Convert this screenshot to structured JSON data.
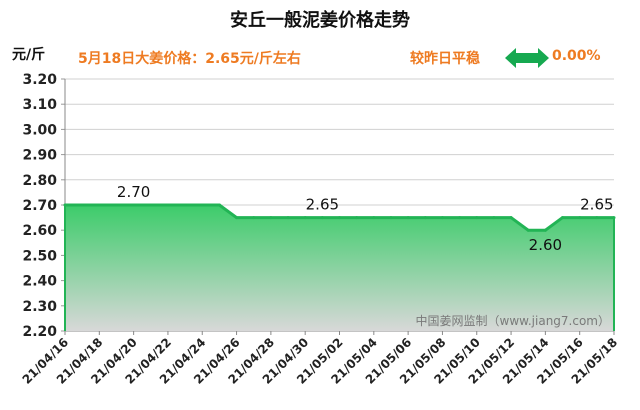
{
  "title": "安丘一般泥姜价格走势",
  "unit": "元/斤",
  "price_note": "5月18日大姜价格：2.65元/斤左右",
  "compare_label": "较昨日平稳",
  "compare_value": "0.00%",
  "watermark": "中国姜网监制（www.jiang7.com）",
  "colors": {
    "title": "#111111",
    "accent": "#ee7b22",
    "line": "#22b455",
    "arrow": "#16a950",
    "fill_top": "#3ccc6a",
    "fill_bottom": "#d8d8d8"
  },
  "chart_data": {
    "type": "area",
    "x": [
      "21/04/16",
      "21/04/17",
      "21/04/18",
      "21/04/19",
      "21/04/20",
      "21/04/21",
      "21/04/22",
      "21/04/23",
      "21/04/24",
      "21/04/25",
      "21/04/26",
      "21/04/27",
      "21/04/28",
      "21/04/29",
      "21/04/30",
      "21/05/01",
      "21/05/02",
      "21/05/03",
      "21/05/04",
      "21/05/05",
      "21/05/06",
      "21/05/07",
      "21/05/08",
      "21/05/09",
      "21/05/10",
      "21/05/11",
      "21/05/12",
      "21/05/13",
      "21/05/14",
      "21/05/15",
      "21/05/16",
      "21/05/17",
      "21/05/18"
    ],
    "values": [
      2.7,
      2.7,
      2.7,
      2.7,
      2.7,
      2.7,
      2.7,
      2.7,
      2.7,
      2.7,
      2.65,
      2.65,
      2.65,
      2.65,
      2.65,
      2.65,
      2.65,
      2.65,
      2.65,
      2.65,
      2.65,
      2.65,
      2.65,
      2.65,
      2.65,
      2.65,
      2.65,
      2.6,
      2.6,
      2.65,
      2.65,
      2.65,
      2.65
    ],
    "xticks": [
      "21/04/16",
      "21/04/18",
      "21/04/20",
      "21/04/22",
      "21/04/24",
      "21/04/26",
      "21/04/28",
      "21/04/30",
      "21/05/02",
      "21/05/04",
      "21/05/06",
      "21/05/08",
      "21/05/10",
      "21/05/12",
      "21/05/14",
      "21/05/16",
      "21/05/18"
    ],
    "yticks": [
      "3.20",
      "3.10",
      "3.00",
      "2.90",
      "2.80",
      "2.70",
      "2.60",
      "2.50",
      "2.40",
      "2.30",
      "2.20"
    ],
    "ylim": [
      2.2,
      3.2
    ],
    "ylabel": "元/斤",
    "grid": true,
    "annotations": [
      {
        "index": 4,
        "text": "2.70"
      },
      {
        "index": 15,
        "text": "2.65"
      },
      {
        "index": 28,
        "text": "2.60"
      },
      {
        "index": 31,
        "text": "2.65"
      }
    ]
  }
}
